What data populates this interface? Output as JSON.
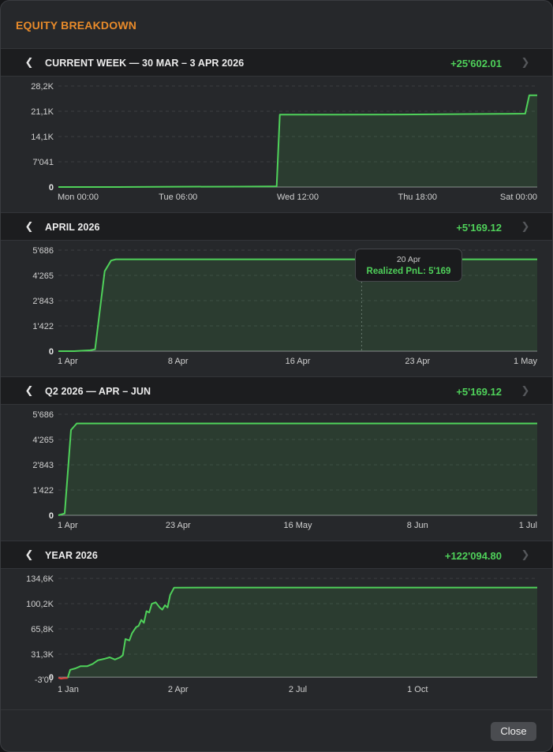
{
  "dialog": {
    "title": "EQUITY BREAKDOWN",
    "close_label": "Close"
  },
  "colors": {
    "accent": "#e98b2a",
    "positive": "#4fd15a",
    "negative": "#e0443e"
  },
  "sections": [
    {
      "id": "week",
      "title": "CURRENT WEEK  —  30 MAR – 3 APR 2026",
      "value": "+25'602.01",
      "chart_data": {
        "type": "area",
        "x_labels": [
          "Mon 00:00",
          "Tue 06:00",
          "Wed 12:00",
          "Thu 18:00",
          "Sat 00:00"
        ],
        "y_labels": [
          "28,2K",
          "21,1K",
          "14,1K",
          "7'041",
          "0"
        ],
        "ylim": [
          0,
          28200
        ],
        "xlim": [
          0,
          120
        ],
        "points": [
          [
            0,
            0
          ],
          [
            15,
            0
          ],
          [
            30,
            80
          ],
          [
            45,
            120
          ],
          [
            53,
            150
          ],
          [
            54.7,
            200
          ],
          [
            55.5,
            20200
          ],
          [
            70,
            20200
          ],
          [
            85,
            20250
          ],
          [
            100,
            20350
          ],
          [
            112,
            20450
          ],
          [
            117,
            20500
          ],
          [
            118,
            25600
          ],
          [
            120,
            25602
          ]
        ]
      }
    },
    {
      "id": "month",
      "title": "APRIL 2026",
      "value": "+5'169.12",
      "tooltip": {
        "date": "20 Apr",
        "label": "Realized PnL: 5'169"
      },
      "chart_data": {
        "type": "area",
        "x_labels": [
          "1 Apr",
          "8 Apr",
          "16 Apr",
          "23 Apr",
          "1 May"
        ],
        "y_labels": [
          "5'686",
          "4'265",
          "2'843",
          "1'422",
          "0"
        ],
        "ylim": [
          0,
          5686
        ],
        "xlim": [
          1,
          31
        ],
        "tooltip_x": 20,
        "points": [
          [
            1,
            0
          ],
          [
            2,
            0
          ],
          [
            3,
            50
          ],
          [
            3.3,
            100
          ],
          [
            3.9,
            4500
          ],
          [
            4.3,
            5100
          ],
          [
            4.6,
            5169
          ],
          [
            10,
            5169
          ],
          [
            20,
            5169
          ],
          [
            31,
            5169
          ]
        ]
      }
    },
    {
      "id": "quarter",
      "title": "Q2 2026  —  APR – JUN",
      "value": "+5'169.12",
      "chart_data": {
        "type": "area",
        "x_labels": [
          "1 Apr",
          "23 Apr",
          "16 May",
          "8 Jun",
          "1 Jul"
        ],
        "y_labels": [
          "5'686",
          "4'265",
          "2'843",
          "1'422",
          "0"
        ],
        "ylim": [
          0,
          5686
        ],
        "xlim": [
          1,
          92
        ],
        "points": [
          [
            1,
            0
          ],
          [
            2.2,
            100
          ],
          [
            3.4,
            4800
          ],
          [
            4.5,
            5169
          ],
          [
            30,
            5169
          ],
          [
            60,
            5169
          ],
          [
            92,
            5169
          ]
        ]
      }
    },
    {
      "id": "year",
      "title": "YEAR 2026",
      "value": "+122'094.80",
      "chart_data": {
        "type": "area",
        "x_labels": [
          "1 Jan",
          "2 Apr",
          "2 Jul",
          "1 Oct"
        ],
        "y_labels": [
          "134,6K",
          "100,2K",
          "65,8K",
          "31,3K",
          "0",
          "-3'07"
        ],
        "ylim": [
          -3070,
          134600
        ],
        "xlim": [
          1,
          365
        ],
        "negative_points": [
          [
            1,
            -800
          ],
          [
            3,
            -2000
          ],
          [
            5,
            -1500
          ],
          [
            8,
            -1200
          ]
        ],
        "points": [
          [
            8,
            -1200
          ],
          [
            10,
            10000
          ],
          [
            14,
            12000
          ],
          [
            18,
            15000
          ],
          [
            23,
            15000
          ],
          [
            27,
            18000
          ],
          [
            31,
            23000
          ],
          [
            36,
            25000
          ],
          [
            40,
            27000
          ],
          [
            44,
            24000
          ],
          [
            48,
            27000
          ],
          [
            50,
            30000
          ],
          [
            52,
            52000
          ],
          [
            55,
            50000
          ],
          [
            57,
            60000
          ],
          [
            60,
            68000
          ],
          [
            62,
            70000
          ],
          [
            64,
            78000
          ],
          [
            66,
            74000
          ],
          [
            68,
            90000
          ],
          [
            70,
            88000
          ],
          [
            72,
            100000
          ],
          [
            75,
            102000
          ],
          [
            78,
            95000
          ],
          [
            80,
            92000
          ],
          [
            82,
            98000
          ],
          [
            84,
            95000
          ],
          [
            86,
            112000
          ],
          [
            89,
            122000
          ],
          [
            120,
            122094
          ],
          [
            200,
            122094
          ],
          [
            365,
            122094
          ]
        ]
      }
    }
  ]
}
